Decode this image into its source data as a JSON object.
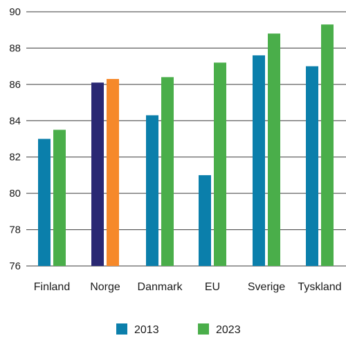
{
  "chart_data": {
    "type": "bar",
    "title": "",
    "xlabel": "",
    "ylabel": "",
    "categories": [
      "Finland",
      "Norge",
      "Danmark",
      "EU",
      "Sverige",
      "Tyskland"
    ],
    "series": [
      {
        "name": "2013",
        "color": "#0b7fab",
        "values": [
          83.0,
          86.1,
          84.3,
          81.0,
          87.6,
          87.0
        ]
      },
      {
        "name": "2023",
        "color": "#4aae4a",
        "values": [
          83.5,
          86.3,
          86.4,
          87.2,
          88.8,
          89.3
        ]
      }
    ],
    "highlight": {
      "category": "Norge",
      "colors": [
        "#2a2873",
        "#f6892a"
      ]
    },
    "ylim": [
      76,
      90
    ],
    "yticks": [
      76,
      78,
      80,
      82,
      84,
      86,
      88,
      90
    ],
    "grid": true,
    "legend_position": "bottom-center"
  }
}
